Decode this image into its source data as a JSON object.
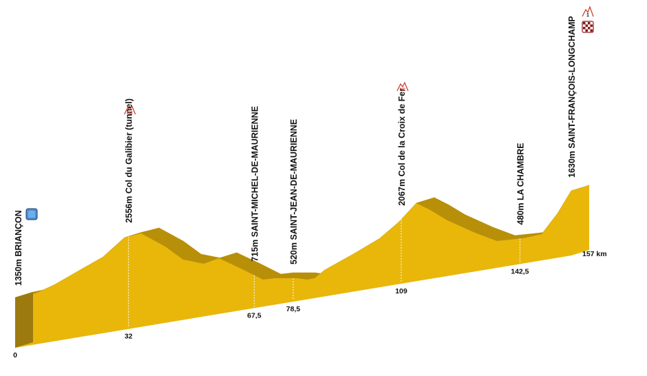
{
  "colors": {
    "face": "#E8B70A",
    "top": "#B88F08",
    "side": "#9C7A10",
    "drop_line": "#ffffff",
    "climb_icon": "#C0392B",
    "start_icon": "#4A90D9"
  },
  "km_labels": [
    "0",
    "32",
    "67,5",
    "78,5",
    "109",
    "142,5",
    "157 km"
  ],
  "points": [
    {
      "name": "1350m BRIANÇON",
      "km": 0,
      "km_label": "0",
      "marker": "start-flag-icon"
    },
    {
      "name": "2556m Col du Galibier (tunnel)",
      "km": 32,
      "km_label": "32",
      "marker": "hc-climb-icon",
      "category": "HC"
    },
    {
      "name": "715m SAINT-MICHEL-DE-MAURIENNE",
      "km": 67.5,
      "km_label": "67,5"
    },
    {
      "name": "520m SAINT-JEAN-DE-MAURIENNE",
      "km": 78.5,
      "km_label": "78,5"
    },
    {
      "name": "2067m Col de la Croix de Fer",
      "km": 109,
      "km_label": "109",
      "marker": "hc-climb-icon",
      "category": "HC"
    },
    {
      "name": "480m LA CHAMBRE",
      "km": 142.5,
      "km_label": "142,5"
    },
    {
      "name": "1630m SAINT-FRANÇOIS-LONGCHAMP",
      "km": 157,
      "km_label": "157 km",
      "marker": "finish-flag-icon",
      "category": "1"
    }
  ]
}
